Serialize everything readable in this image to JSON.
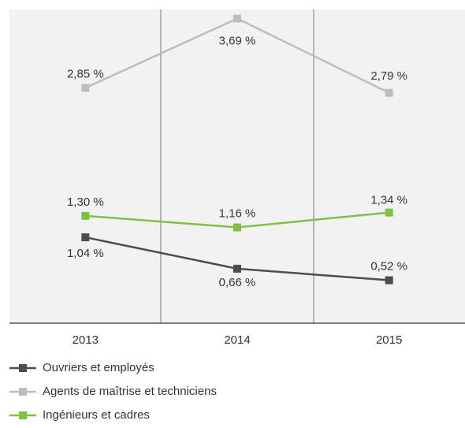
{
  "chart_data": {
    "type": "line",
    "categories": [
      "2013",
      "2014",
      "2015"
    ],
    "ylim": [
      0,
      3.8
    ],
    "series": [
      {
        "name": "Ouvriers et employés",
        "color": "#4d4d4d",
        "values": [
          1.04,
          0.66,
          0.52
        ],
        "value_labels": [
          "1,04 %",
          "0,66 %",
          "0,52 %"
        ]
      },
      {
        "name": "Agents de maîtrise et techniciens",
        "color": "#bdbdbd",
        "values": [
          2.85,
          3.69,
          2.79
        ],
        "value_labels": [
          "2,85 %",
          "3,69 %",
          "2,79 %"
        ]
      },
      {
        "name": "Ingénieurs et cadres",
        "color": "#7dc242",
        "values": [
          1.3,
          1.16,
          1.34
        ],
        "value_labels": [
          "1,30 %",
          "1,16 %",
          "1,34 %"
        ]
      }
    ]
  }
}
